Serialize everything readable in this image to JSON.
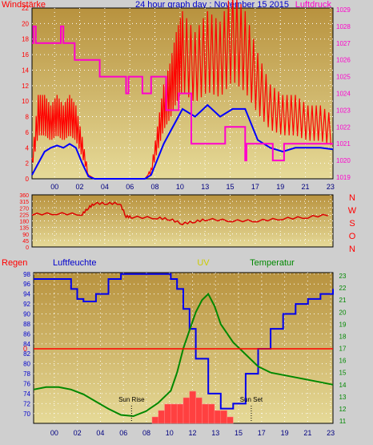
{
  "header": {
    "title": "24 hour graph day : November 15 2015",
    "wind_label": "Windstärke",
    "pressure_label": "Luftdruck"
  },
  "colors": {
    "wind": "#ff0000",
    "wind_avg": "#0000ff",
    "pressure": "#ff00cc",
    "direction": "#dd0000",
    "humidity": "#0000ee",
    "temperature": "#008800",
    "rain": "#ff0000",
    "uv": "#cccc00",
    "plot_top": "#b8923e",
    "plot_bottom": "#e6da98",
    "grid": "#ffffff"
  },
  "chart_data": [
    {
      "id": "wind",
      "type": "line",
      "title": "24 hour graph day : November 15 2015",
      "x_ticks": [
        "00",
        "02",
        "04",
        "06",
        "08",
        "10",
        "13",
        "15",
        "17",
        "19",
        "21",
        "23"
      ],
      "ylabel": "Windstärke",
      "ylim": [
        0,
        22
      ],
      "y_ticks": [
        "0",
        "2",
        "4",
        "6",
        "8",
        "10",
        "12",
        "14",
        "16",
        "18",
        "20",
        "22"
      ],
      "y2label": "Luftdruck",
      "y2lim": [
        1019,
        1029
      ],
      "y2_ticks": [
        "1019",
        "1020",
        "1021",
        "1022",
        "1023",
        "1024",
        "1025",
        "1026",
        "1027",
        "1028",
        "1029"
      ],
      "series": [
        {
          "name": "gust",
          "x": [
            0,
            0.5,
            1,
            1.5,
            2,
            2.5,
            3,
            3.5,
            4,
            4.5,
            5,
            6,
            7,
            8,
            9,
            9.5,
            10,
            10.5,
            11,
            11.5,
            12,
            13,
            14,
            15,
            16,
            17,
            18,
            19,
            20,
            21,
            22,
            23,
            24
          ],
          "values": [
            2,
            8,
            8,
            7,
            8,
            7,
            8,
            7,
            4,
            0.5,
            0,
            0,
            0,
            0,
            0,
            1,
            5,
            9,
            11,
            14,
            16,
            14,
            16,
            15,
            18,
            16,
            12,
            9,
            8,
            8,
            7,
            7,
            6
          ]
        },
        {
          "name": "average",
          "x": [
            0,
            0.5,
            1,
            1.5,
            2,
            2.5,
            3,
            3.5,
            4,
            4.5,
            5,
            6,
            7,
            8,
            9,
            9.5,
            10,
            10.5,
            11,
            11.5,
            12,
            13,
            14,
            15,
            16,
            17,
            18,
            19,
            20,
            21,
            22,
            23,
            24
          ],
          "values": [
            0.5,
            2,
            3.5,
            4,
            4.3,
            4,
            4.5,
            4,
            2,
            0.3,
            0,
            0,
            0,
            0,
            0,
            0.5,
            2.5,
            4.5,
            6,
            7.5,
            9,
            8,
            9.5,
            8,
            9,
            9,
            5,
            4,
            3.5,
            4,
            4,
            4,
            3.8
          ]
        },
        {
          "name": "pressure",
          "x": [
            0,
            0.1,
            0.2,
            0.3,
            0.4,
            0.5,
            2.2,
            2.3,
            2.4,
            2.5,
            2.6,
            2.7,
            3.3,
            3.4,
            5.3,
            5.4,
            5.5,
            5.6,
            7.4,
            7.5,
            7.6,
            7.7,
            8.7,
            8.8,
            9.4,
            9.5,
            10.6,
            10.7,
            11.6,
            11.7,
            12.6,
            12.7,
            15.3,
            15.4,
            16.9,
            17,
            17.1,
            17.2,
            19.1,
            19.2,
            20,
            20.1,
            24
          ],
          "values": [
            1027,
            1028,
            1028,
            1027,
            1027,
            1027,
            1027,
            1028,
            1028,
            1027,
            1027,
            1027,
            1027,
            1026,
            1026,
            1025,
            1025,
            1025,
            1025,
            1024,
            1024,
            1025,
            1025,
            1024,
            1024,
            1025,
            1025,
            1023,
            1023,
            1024,
            1024,
            1021,
            1021,
            1022,
            1022,
            1020,
            1021,
            1021,
            1021,
            1020,
            1020,
            1021,
            1021
          ]
        }
      ]
    },
    {
      "id": "direction",
      "type": "line",
      "y_ticks": [
        "0",
        "45",
        "90",
        "135",
        "180",
        "225",
        "270",
        "315",
        "360"
      ],
      "ylim": [
        0,
        360
      ],
      "compass_labels": [
        "N",
        "W",
        "S",
        "O",
        "N"
      ],
      "series": [
        {
          "name": "direction",
          "x": [
            0,
            2,
            4,
            4.5,
            5,
            6,
            7,
            7.5,
            8,
            10,
            11,
            12,
            13,
            14,
            16,
            18,
            20,
            22,
            24
          ],
          "values": [
            225,
            230,
            225,
            270,
            300,
            300,
            300,
            210,
            205,
            200,
            190,
            160,
            175,
            190,
            180,
            180,
            195,
            205,
            225
          ]
        }
      ]
    },
    {
      "id": "climate",
      "type": "line",
      "rain_label": "Regen",
      "humidity_label": "Luftfeuchte",
      "uv_label": "UV",
      "temperature_label": "Temperatur",
      "rain_value_label": "0",
      "humidity_ylim": [
        69,
        97
      ],
      "humidity_ticks": [
        "70",
        "72",
        "74",
        "76",
        "78",
        "80",
        "82",
        "84",
        "86",
        "88",
        "90",
        "92",
        "94",
        "96",
        "98"
      ],
      "temperature_ylim": [
        11,
        23
      ],
      "temperature_ticks": [
        "11",
        "12",
        "13",
        "14",
        "15",
        "16",
        "17",
        "18",
        "19",
        "20",
        "21",
        "22",
        "23"
      ],
      "x_ticks": [
        "00",
        "02",
        "04",
        "06",
        "08",
        "10",
        "12",
        "13",
        "15",
        "17",
        "19",
        "21",
        "23"
      ],
      "sun_rise_label": "Sun Rise",
      "sun_set_label": "Sun Set",
      "sun_rise_time": 7.85,
      "sun_set_time": 17.45,
      "series": [
        {
          "name": "humidity",
          "x": [
            0,
            1,
            2,
            3,
            3.5,
            4,
            5,
            6,
            7,
            8,
            9,
            10,
            11,
            11.5,
            12,
            12.5,
            13,
            14,
            15,
            16,
            17,
            18,
            19,
            20,
            21,
            22,
            23,
            24
          ],
          "values": [
            97,
            97,
            97,
            95,
            93,
            92.5,
            94,
            97,
            98,
            98,
            98,
            98,
            97,
            95,
            91,
            87,
            81,
            74,
            71,
            72,
            78,
            83,
            87,
            90,
            92,
            93,
            94,
            95
          ]
        },
        {
          "name": "temperature",
          "x": [
            0,
            1,
            2,
            3,
            4,
            5,
            6,
            7,
            8,
            9,
            10,
            11,
            11.5,
            12,
            13,
            13.5,
            14,
            14.5,
            15,
            16,
            17,
            18,
            19,
            20,
            21,
            22,
            23,
            24
          ],
          "values": [
            13.6,
            13.8,
            13.8,
            13.6,
            13.2,
            12.6,
            12.0,
            11.5,
            11.4,
            11.8,
            12.5,
            13.5,
            15,
            17,
            20,
            21,
            21.5,
            20.5,
            19,
            17.5,
            16.5,
            15.5,
            15,
            14.8,
            14.6,
            14.4,
            14.2,
            14.0
          ]
        },
        {
          "name": "uv",
          "x": [
            9.5,
            10,
            10.5,
            11,
            11.5,
            12,
            12.5,
            13,
            13.5,
            14,
            14.5,
            15,
            15.5,
            16
          ],
          "values": [
            1,
            2,
            3,
            3,
            3,
            4,
            5,
            4,
            3,
            3,
            2,
            2,
            1,
            0
          ]
        }
      ]
    }
  ]
}
